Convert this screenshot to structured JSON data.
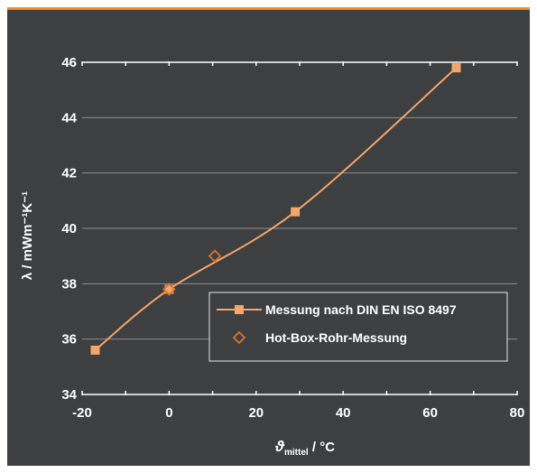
{
  "chart_data": {
    "type": "line",
    "xlabel_symbol": "ϑ",
    "xlabel_sub": "mittel",
    "xlabel_unit": " / °C",
    "ylabel": "λ / mWm⁻¹K⁻¹",
    "xlim": [
      -20,
      80
    ],
    "ylim": [
      34,
      46
    ],
    "xticks": [
      -20,
      0,
      20,
      40,
      60,
      80
    ],
    "yticks": [
      34,
      36,
      38,
      40,
      42,
      44,
      46
    ],
    "grid": true,
    "legend_position": "bottom-right",
    "series": [
      {
        "name": "Messung nach DIN EN ISO 8497",
        "marker": "square",
        "line": "smooth",
        "color": "#f5a66a",
        "x": [
          -17,
          0,
          29,
          66
        ],
        "y": [
          35.6,
          37.8,
          40.6,
          45.8
        ]
      },
      {
        "name": "Hot-Box-Rohr-Messung",
        "marker": "diamond-open",
        "line": "none",
        "color": "#d9742a",
        "x": [
          0,
          10.5
        ],
        "y": [
          37.8,
          39.0
        ]
      }
    ]
  }
}
